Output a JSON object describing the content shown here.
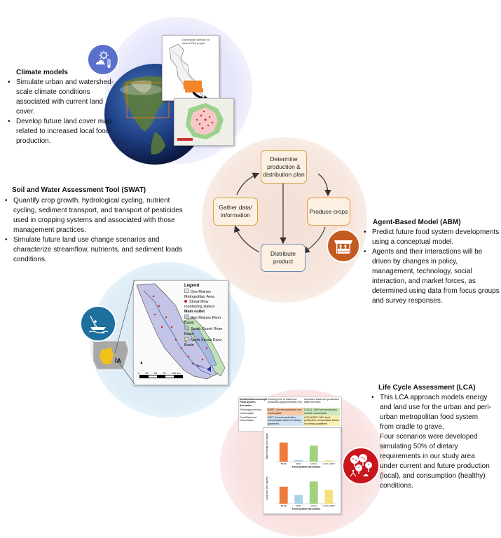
{
  "climate": {
    "title": "Climate models",
    "bullets": [
      "Simulate urban and watershed-scale climate conditions associated with current land cover.",
      "Develop future land cover map related to increased local food production."
    ],
    "map_label": "Downscale domain for Intsnrf-FAS project"
  },
  "swat": {
    "title": "Soil and Water Assessment Tool (SWAT)",
    "bullets": [
      "Quantify crop growth, hydrological cycling, nutrient cycling, sediment transport, and transport of pesticides used in cropping systems and associated with those management practices.",
      "Simulate future land use change scenarios and characterize streamflow, nutrients, and sediment loads conditions."
    ],
    "legend_title": "Legend",
    "legend_items": [
      "Des Moines Metropolitan Area",
      "Streamflow monitoring station",
      "Main outlet",
      "Des Moines River Basin",
      "South Skunk River Basin",
      "North Skunk River Basin"
    ],
    "state_label": "IA",
    "scale": [
      "0",
      "25",
      "50",
      "75",
      "100 km"
    ]
  },
  "abm": {
    "title": "Agent-Based Model (ABM)",
    "bullets": [
      "Predict future food system developments using a conceptual model.",
      "Agents and their interactions will be driven by changes in policy, management, technology, social interaction, and market forces, as determined using data from focus groups and survey responses."
    ],
    "nodes": {
      "top": "Determine production & distribution plan",
      "right": "Produce crops",
      "bottom": "Distribute product",
      "left": "Gather data/ information"
    }
  },
  "lca": {
    "title": "Life Cycle Assessment (LCA)",
    "bullets": [
      "This LCA approach models energy and land use for the urban and peri-urban metropolitan food system from cradle to grave,",
      "Four scenarios were developed simulating 50% of dietary requirements in our study area under current and future production (local), and consumption (healthy) conditions."
    ],
    "table": {
      "head": [
        "Distribution/consumption: Food System Scenarios",
        "Existing level of local food production (approximately 0%)",
        "Increased local food production within the area"
      ],
      "row1": [
        "Field/region/of food consumption",
        "BASE: Current production and consumption",
        "LOCAL: 50% food production, current consumption"
      ],
      "row2": [
        "Food/Best food consumption",
        "DIET: Current production, consumption based on dietary guidelines",
        "LOCALDIET: 50% local production, consumption based on dietary guidelines"
      ]
    },
    "chart_data": [
      {
        "type": "bar",
        "ylabel": "Total Energy (GJ cap/yr)",
        "xlabel": "Food System Scenarios",
        "categories": [
          "BASE",
          "DIET",
          "LOCAL",
          "LOCAL DIET"
        ],
        "values": [
          0.62,
          0.05,
          0.52,
          0.04
        ],
        "colors": [
          "#ee7a3c",
          "#a9d2ea",
          "#a2d17c",
          "#f3e27a"
        ]
      },
      {
        "type": "bar",
        "ylabel": "Land use (m2 cap/yr)",
        "xlabel": "Food System Scenarios",
        "categories": [
          "BASE",
          "DIET",
          "LOCAL",
          "LOCAL DIET"
        ],
        "values": [
          0.55,
          0.28,
          0.72,
          0.45
        ],
        "colors": [
          "#ee7a3c",
          "#a9d2ea",
          "#a2d17c",
          "#f3e27a"
        ]
      }
    ]
  },
  "colors": {
    "node_border": "#d4a03c",
    "right_node_border": "#ef9035",
    "bottom_node_border": "#6b86b4",
    "climate_icon_bg": "#5b6fcc",
    "abm_icon_bg": "#c35a20",
    "swat_icon_bg": "#1d6f9e",
    "lca_icon_bg": "#c9161d"
  }
}
